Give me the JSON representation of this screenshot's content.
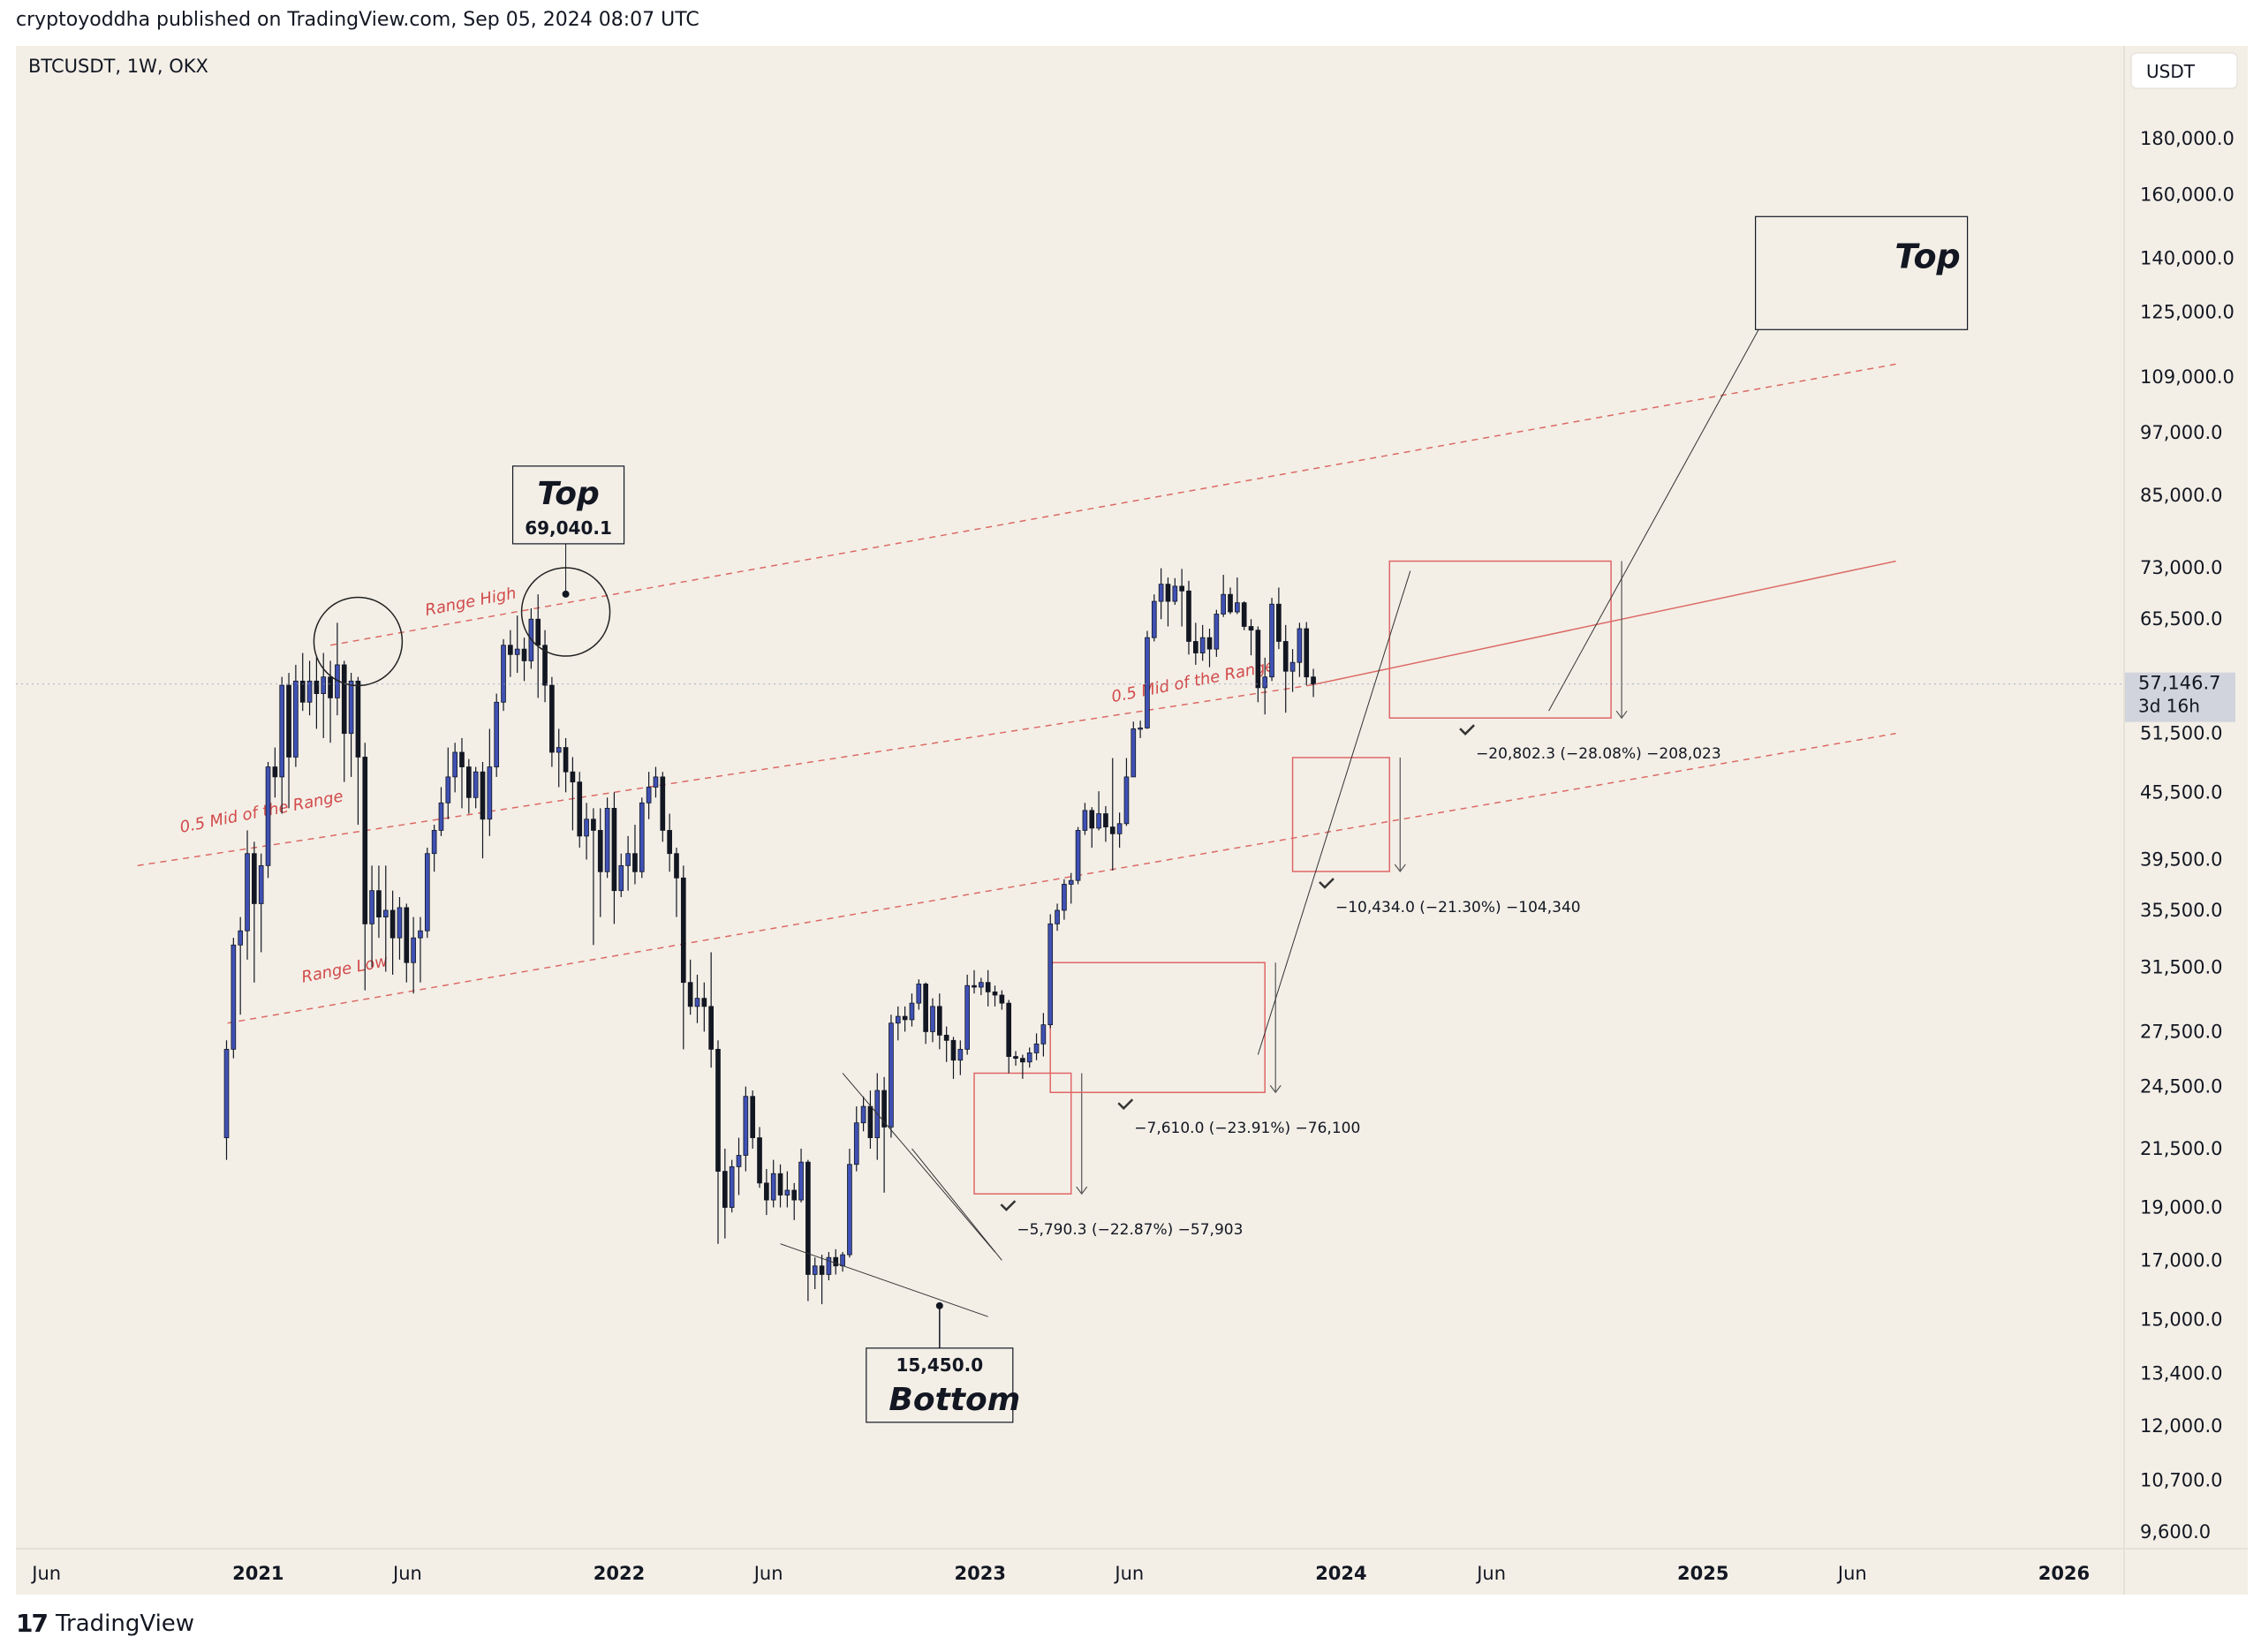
{
  "header": {
    "published": "cryptoyoddha published on TradingView.com, Sep 05, 2024 08:07 UTC"
  },
  "footer": {
    "logo": "17",
    "brand": "TradingView"
  },
  "chart_data": {
    "type": "candlestick",
    "symbol_label": "BTCUSDT, 1W, OKX",
    "currency": "USDT",
    "y_scale": "log",
    "y_ticks": [
      {
        "v": 180000,
        "t": "180,000.0"
      },
      {
        "v": 160000,
        "t": "160,000.0"
      },
      {
        "v": 140000,
        "t": "140,000.0"
      },
      {
        "v": 125000,
        "t": "125,000.0"
      },
      {
        "v": 109000,
        "t": "109,000.0"
      },
      {
        "v": 97000,
        "t": "97,000.0"
      },
      {
        "v": 85000,
        "t": "85,000.0"
      },
      {
        "v": 73000,
        "t": "73,000.0"
      },
      {
        "v": 65500,
        "t": "65,500.0"
      },
      {
        "v": 51500,
        "t": "51,500.0"
      },
      {
        "v": 45500,
        "t": "45,500.0"
      },
      {
        "v": 39500,
        "t": "39,500.0"
      },
      {
        "v": 35500,
        "t": "35,500.0"
      },
      {
        "v": 31500,
        "t": "31,500.0"
      },
      {
        "v": 27500,
        "t": "27,500.0"
      },
      {
        "v": 24500,
        "t": "24,500.0"
      },
      {
        "v": 21500,
        "t": "21,500.0"
      },
      {
        "v": 19000,
        "t": "19,000.0"
      },
      {
        "v": 17000,
        "t": "17,000.0"
      },
      {
        "v": 15000,
        "t": "15,000.0"
      },
      {
        "v": 13400,
        "t": "13,400.0"
      },
      {
        "v": 12000,
        "t": "12,000.0"
      },
      {
        "v": 10700,
        "t": "10,700.0"
      },
      {
        "v": 9600,
        "t": "9,600.0"
      }
    ],
    "x_ticks": [
      {
        "t": "Jun",
        "d": "2020-06-01",
        "bold": false
      },
      {
        "t": "2021",
        "d": "2021-01-01",
        "bold": true
      },
      {
        "t": "Jun",
        "d": "2021-06-01",
        "bold": false
      },
      {
        "t": "2022",
        "d": "2022-01-01",
        "bold": true
      },
      {
        "t": "Jun",
        "d": "2022-06-01",
        "bold": false
      },
      {
        "t": "2023",
        "d": "2023-01-01",
        "bold": true
      },
      {
        "t": "Jun",
        "d": "2023-06-01",
        "bold": false
      },
      {
        "t": "2024",
        "d": "2024-01-01",
        "bold": true
      },
      {
        "t": "Jun",
        "d": "2024-06-01",
        "bold": false
      },
      {
        "t": "2025",
        "d": "2025-01-01",
        "bold": true
      },
      {
        "t": "Jun",
        "d": "2025-06-01",
        "bold": false
      },
      {
        "t": "2026",
        "d": "2026-01-01",
        "bold": true
      }
    ],
    "last_price": {
      "value": 57146.7,
      "label": "57,146.7",
      "countdown": "3d 16h"
    },
    "trend_lines": [
      {
        "label": "Range High",
        "style": "dashed",
        "p1": {
          "date": "2021-03-15",
          "price": 62000
        },
        "p2": {
          "date": "2025-07-15",
          "price": 112000
        }
      },
      {
        "label": "0.5 Mid of the Range",
        "style": "dashed",
        "p1": {
          "date": "2020-09-01",
          "price": 39000
        },
        "p2": {
          "date": "2023-12-01",
          "price": 57000
        }
      },
      {
        "label": "0.5 Mid of the Range",
        "style": "solid",
        "p1": {
          "date": "2023-12-01",
          "price": 57000
        },
        "p2": {
          "date": "2025-07-15",
          "price": 74000
        }
      },
      {
        "label": "Range Low",
        "style": "dashed",
        "p1": {
          "date": "2020-12-01",
          "price": 28000
        },
        "p2": {
          "date": "2025-07-15",
          "price": 51500
        }
      }
    ],
    "range_line_labels": [
      {
        "text": "Range High",
        "date": "2021-06-20",
        "price": 66000
      },
      {
        "text": "0.5 Mid of the Range",
        "date": "2020-10-15",
        "price": 41800
      },
      {
        "text": "0.5 Mid of the Range",
        "date": "2023-05-15",
        "price": 55000
      },
      {
        "text": "Range Low",
        "date": "2021-02-15",
        "price": 30500
      }
    ],
    "annotations": [
      {
        "title": "Top",
        "value": "69,040.1",
        "date": "2021-11-08",
        "price": 69040
      },
      {
        "title": "Bottom",
        "value": "15,450.0",
        "date": "2022-11-21",
        "price": 15450
      },
      {
        "title": "Top",
        "value": "",
        "date": "2025-05-01",
        "price": 140000
      }
    ],
    "drawdowns": [
      {
        "label": "−5,790.3 (−22.87%) −57,903",
        "date_start": "2022-12-26",
        "date_end": "2023-04-03",
        "high": 25200,
        "low": 19550
      },
      {
        "label": "−7,610.0 (−23.91%) −76,100",
        "date_start": "2023-03-13",
        "date_end": "2023-10-16",
        "high": 31800,
        "low": 24200
      },
      {
        "label": "−10,434.0 (−21.30%) −104,340",
        "date_start": "2023-11-13",
        "date_end": "2024-02-19",
        "high": 48950,
        "low": 38520
      },
      {
        "label": "−20,802.3 (−28.08%) −208,023",
        "date_start": "2024-02-19",
        "date_end": "2024-09-30",
        "high": 74000,
        "low": 53200
      }
    ],
    "candles": [
      [
        22000,
        26500,
        21000,
        27000
      ],
      [
        26500,
        33000,
        26000,
        33500
      ],
      [
        33000,
        34000,
        28500,
        35000
      ],
      [
        34000,
        40000,
        32000,
        42000
      ],
      [
        40000,
        36000,
        30500,
        41000
      ],
      [
        36000,
        39000,
        32500,
        40000
      ],
      [
        39000,
        48000,
        38000,
        48500
      ],
      [
        48000,
        47000,
        45000,
        50000
      ],
      [
        47000,
        57000,
        43500,
        58000
      ],
      [
        57000,
        49000,
        44000,
        58500
      ],
      [
        49000,
        57500,
        48000,
        59500
      ],
      [
        57500,
        55000,
        54000,
        61000
      ],
      [
        55000,
        57500,
        53500,
        60000
      ],
      [
        57500,
        56000,
        52000,
        60500
      ],
      [
        56000,
        58000,
        51000,
        61000
      ],
      [
        58000,
        55500,
        50500,
        60000
      ],
      [
        55500,
        59500,
        53500,
        65000
      ],
      [
        59500,
        51500,
        46500,
        60000
      ],
      [
        51500,
        57500,
        47000,
        58500
      ],
      [
        57500,
        49000,
        42500,
        58000
      ],
      [
        49000,
        34500,
        30000,
        50500
      ],
      [
        34500,
        37000,
        31500,
        39000
      ],
      [
        37000,
        35000,
        33500,
        39000
      ],
      [
        35000,
        35500,
        31200,
        39000
      ],
      [
        35500,
        33500,
        31000,
        37000
      ],
      [
        33500,
        35700,
        32000,
        36500
      ],
      [
        35700,
        31800,
        30500,
        36000
      ],
      [
        31800,
        33500,
        29800,
        35000
      ],
      [
        33500,
        34000,
        30500,
        35000
      ],
      [
        34000,
        40000,
        33500,
        40500
      ],
      [
        40000,
        42000,
        38500,
        42500
      ],
      [
        42000,
        44500,
        41500,
        46000
      ],
      [
        44500,
        47000,
        43000,
        50000
      ],
      [
        47000,
        49500,
        45500,
        50500
      ],
      [
        49500,
        48000,
        44000,
        51000
      ],
      [
        48000,
        45000,
        43500,
        48800
      ],
      [
        45000,
        47500,
        44000,
        48000
      ],
      [
        47500,
        43000,
        39600,
        48500
      ],
      [
        43000,
        48000,
        41500,
        52000
      ],
      [
        48000,
        55000,
        47000,
        56000
      ],
      [
        55000,
        62000,
        54000,
        62800
      ],
      [
        62000,
        60800,
        58000,
        64000
      ],
      [
        60800,
        61500,
        58500,
        66000
      ],
      [
        61500,
        60000,
        57500,
        63000
      ],
      [
        60000,
        65500,
        59000,
        67000
      ],
      [
        65500,
        62000,
        55500,
        69000
      ],
      [
        62000,
        57000,
        55000,
        64000
      ],
      [
        57000,
        49500,
        48000,
        58000
      ],
      [
        49500,
        50000,
        46000,
        52000
      ],
      [
        50000,
        47500,
        45500,
        51000
      ],
      [
        47500,
        46500,
        42000,
        49000
      ],
      [
        46500,
        41500,
        40500,
        47500
      ],
      [
        41500,
        43000,
        39500,
        44500
      ],
      [
        43000,
        42000,
        33000,
        44000
      ],
      [
        42000,
        38500,
        35000,
        44000
      ],
      [
        38500,
        44000,
        38000,
        45000
      ],
      [
        44000,
        37000,
        34500,
        45500
      ],
      [
        37000,
        39000,
        36500,
        40000
      ],
      [
        39000,
        40000,
        37000,
        41500
      ],
      [
        40000,
        38500,
        37500,
        42500
      ],
      [
        38500,
        44500,
        38000,
        45000
      ],
      [
        44500,
        46000,
        43000,
        47500
      ],
      [
        46000,
        47000,
        45000,
        48000
      ],
      [
        47000,
        42000,
        41000,
        47500
      ],
      [
        42000,
        40000,
        38500,
        43500
      ],
      [
        40000,
        38000,
        35000,
        40500
      ],
      [
        38000,
        30500,
        26500,
        39000
      ],
      [
        30500,
        29000,
        28500,
        32000
      ],
      [
        29000,
        29500,
        28000,
        31000
      ],
      [
        29500,
        29000,
        27500,
        30500
      ],
      [
        29000,
        26500,
        25500,
        32500
      ],
      [
        26500,
        20500,
        17600,
        27000
      ],
      [
        20500,
        19000,
        17800,
        21500
      ],
      [
        19000,
        20700,
        18800,
        21000
      ],
      [
        20700,
        21200,
        19500,
        22000
      ],
      [
        21200,
        24000,
        20500,
        24500
      ],
      [
        24000,
        22000,
        21500,
        24300
      ],
      [
        22000,
        20000,
        19800,
        22500
      ],
      [
        20000,
        19300,
        18700,
        20600
      ],
      [
        19300,
        20400,
        19000,
        21000
      ],
      [
        20400,
        19500,
        19000,
        20800
      ],
      [
        19500,
        19700,
        19000,
        20500
      ],
      [
        19700,
        19300,
        18500,
        20000
      ],
      [
        19300,
        20900,
        19200,
        21500
      ],
      [
        20900,
        16500,
        15600,
        21000
      ],
      [
        16500,
        16800,
        16000,
        17100
      ],
      [
        16800,
        16500,
        15500,
        17200
      ],
      [
        16500,
        17100,
        16300,
        17300
      ],
      [
        17100,
        16800,
        16500,
        17400
      ],
      [
        16800,
        17200,
        16600,
        17300
      ],
      [
        17200,
        20800,
        17100,
        21500
      ],
      [
        20800,
        22700,
        20500,
        23500
      ],
      [
        22700,
        23500,
        22300,
        24000
      ],
      [
        23500,
        22000,
        21500,
        24300
      ],
      [
        22000,
        24300,
        21000,
        25200
      ],
      [
        24300,
        22500,
        19600,
        25000
      ],
      [
        22500,
        28000,
        22000,
        28500
      ],
      [
        28000,
        28400,
        27000,
        29000
      ],
      [
        28400,
        28200,
        27500,
        29000
      ],
      [
        28200,
        29200,
        27800,
        29800
      ],
      [
        29200,
        30400,
        28800,
        30700
      ],
      [
        30400,
        27500,
        26800,
        30500
      ],
      [
        27500,
        29000,
        26900,
        29500
      ],
      [
        29000,
        27300,
        26500,
        29800
      ],
      [
        27300,
        27000,
        25800,
        27800
      ],
      [
        27000,
        25900,
        24900,
        27200
      ],
      [
        25900,
        26500,
        25100,
        27000
      ],
      [
        26500,
        30300,
        26200,
        31000
      ],
      [
        30300,
        30200,
        29800,
        31300
      ],
      [
        30200,
        30500,
        29700,
        30800
      ],
      [
        30500,
        29900,
        29000,
        31300
      ],
      [
        29900,
        29700,
        29000,
        30300
      ],
      [
        29700,
        29200,
        28800,
        30000
      ],
      [
        29200,
        26100,
        25200,
        29400
      ],
      [
        26100,
        26000,
        25600,
        26400
      ],
      [
        26000,
        25800,
        24900,
        26200
      ],
      [
        25800,
        26300,
        25500,
        26600
      ],
      [
        26300,
        26800,
        25900,
        27400
      ],
      [
        26800,
        27900,
        26100,
        28600
      ],
      [
        27900,
        34500,
        27700,
        35200
      ],
      [
        34500,
        35500,
        34000,
        36000
      ],
      [
        35500,
        37500,
        34800,
        37900
      ],
      [
        37500,
        37800,
        36000,
        38400
      ],
      [
        37800,
        42000,
        37500,
        42300
      ],
      [
        42000,
        43800,
        41600,
        44500
      ],
      [
        43800,
        42200,
        40500,
        44100
      ],
      [
        42200,
        43500,
        42000,
        45600
      ],
      [
        43500,
        42300,
        41000,
        44200
      ],
      [
        42300,
        41700,
        38600,
        48900
      ],
      [
        41700,
        42600,
        40500,
        43600
      ],
      [
        42600,
        47000,
        42400,
        48900
      ],
      [
        47000,
        52000,
        47000,
        52800
      ],
      [
        52000,
        52100,
        51000,
        52900
      ],
      [
        52100,
        63000,
        52000,
        63900
      ],
      [
        63000,
        68000,
        62500,
        69000
      ],
      [
        68000,
        70500,
        65500,
        72900
      ],
      [
        70500,
        68000,
        64500,
        71500
      ],
      [
        68000,
        70200,
        67500,
        71400
      ],
      [
        70200,
        69500,
        64500,
        72800
      ],
      [
        69500,
        62500,
        60800,
        71000
      ],
      [
        62500,
        61000,
        59500,
        65000
      ],
      [
        61000,
        63000,
        60000,
        64700
      ],
      [
        63000,
        61500,
        59200,
        64200
      ],
      [
        61500,
        66200,
        60500,
        66800
      ],
      [
        66200,
        69000,
        65800,
        71900
      ],
      [
        69000,
        66500,
        66200,
        70000
      ],
      [
        66500,
        67800,
        66200,
        71500
      ],
      [
        67800,
        64500,
        64000,
        68000
      ],
      [
        64500,
        64000,
        60700,
        65500
      ],
      [
        64000,
        56700,
        55000,
        64500
      ],
      [
        56700,
        58000,
        53600,
        60400
      ],
      [
        58000,
        67600,
        57500,
        68500
      ],
      [
        67600,
        62500,
        61500,
        70000
      ],
      [
        62500,
        58700,
        53800,
        64700
      ],
      [
        58700,
        59800,
        56200,
        61500
      ],
      [
        59800,
        64200,
        58000,
        65000
      ],
      [
        64200,
        58000,
        57000,
        65100
      ],
      [
        58000,
        57147,
        55600,
        59000
      ]
    ]
  }
}
